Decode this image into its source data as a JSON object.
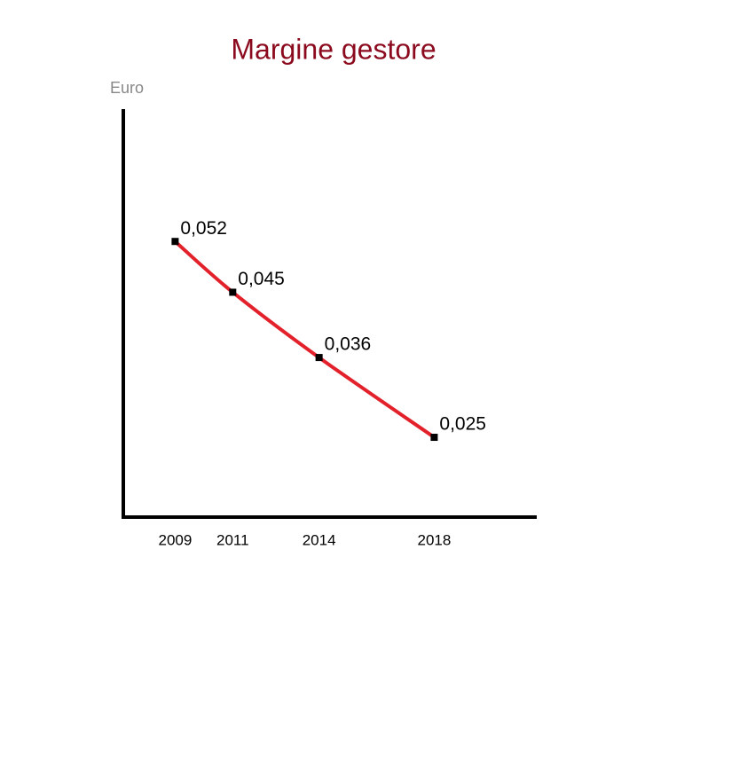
{
  "chart_data": {
    "type": "line",
    "title": "Margine gestore",
    "y_label": "Euro",
    "x": [
      2009,
      2011,
      2014,
      2018
    ],
    "series": [
      {
        "color": "#e3212b",
        "values": [
          0.052,
          0.045,
          0.036,
          0.025
        ],
        "value_labels": [
          "0,052",
          "0,045",
          "0,036",
          "0,025"
        ]
      }
    ],
    "xlim": [
      2007.2,
      2021.5
    ],
    "ylim": [
      0.014,
      0.07
    ]
  }
}
